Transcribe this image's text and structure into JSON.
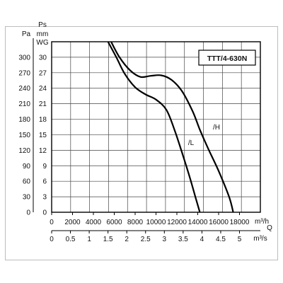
{
  "chart_data": {
    "type": "line",
    "model_label": "TTT/4-630N",
    "units": {
      "y_left": "Pa",
      "y_right_top": "Ps",
      "y_right_mid": "mm",
      "y_right_bottom": "WG",
      "x_top_unit": "m³/h",
      "x_corner": "Q",
      "x_bottom_unit": "m³/s"
    },
    "x_ticks": [
      "0",
      "2000",
      "4000",
      "6000",
      "8000",
      "10000",
      "12000",
      "14000",
      "16000",
      "18000"
    ],
    "x_ticks_m3s": [
      "0",
      "0.5",
      "1",
      "1.5",
      "2",
      "2.5",
      "3",
      "3.5",
      "4",
      "4.5",
      "5"
    ],
    "y_ticks_pa": [
      "0",
      "30",
      "60",
      "90",
      "120",
      "150",
      "180",
      "210",
      "240",
      "270",
      "300"
    ],
    "y_ticks_mmwg": [
      "0",
      "3",
      "6",
      "9",
      "12",
      "15",
      "18",
      "21",
      "24",
      "27",
      "30"
    ],
    "xlim": [
      0,
      20000
    ],
    "ylim": [
      0,
      330
    ],
    "grid": true,
    "series": [
      {
        "name": "/H",
        "x": [
          5700,
          6500,
          7500,
          8500,
          9500,
          10500,
          11500,
          12500,
          13500,
          14200,
          15000,
          16000,
          17000,
          17400
        ],
        "y": [
          330,
          300,
          275,
          262,
          264,
          265,
          256,
          234,
          196,
          160,
          123,
          80,
          30,
          0
        ]
      },
      {
        "name": "/L",
        "x": [
          5400,
          6200,
          7000,
          8000,
          9000,
          10000,
          11000,
          11800,
          12500,
          13200,
          13800,
          14200
        ],
        "y": [
          330,
          300,
          268,
          242,
          228,
          218,
          198,
          158,
          115,
          70,
          28,
          0
        ]
      }
    ]
  }
}
